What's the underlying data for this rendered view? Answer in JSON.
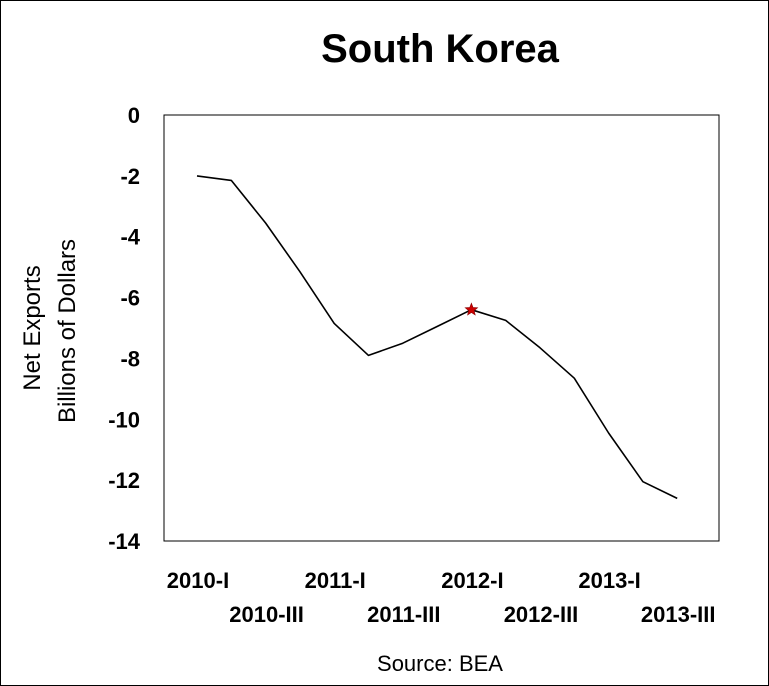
{
  "chart_data": {
    "type": "line",
    "title": "South Korea",
    "ylabel_lines": [
      "Net Exports",
      "Billions of Dollars"
    ],
    "source": "Source: BEA",
    "ylim": [
      -14,
      0
    ],
    "yticks": [
      0,
      -2,
      -4,
      -6,
      -8,
      -10,
      -12,
      -14
    ],
    "ytick_labels": [
      "0",
      "-2",
      "-4",
      "-6",
      "-8",
      "-10",
      "-12",
      "-14"
    ],
    "categories": [
      "2010-I",
      "2010-II",
      "2010-III",
      "2010-IV",
      "2011-I",
      "2011-II",
      "2011-III",
      "2011-IV",
      "2012-I",
      "2012-II",
      "2012-III",
      "2012-IV",
      "2013-I",
      "2013-II",
      "2013-III"
    ],
    "xtick_labels": [
      {
        "category": "2010-I",
        "label": "2010-I",
        "row": 1
      },
      {
        "category": "2010-III",
        "label": "2010-III",
        "row": 2
      },
      {
        "category": "2011-I",
        "label": "2011-I",
        "row": 1
      },
      {
        "category": "2011-III",
        "label": "2011-III",
        "row": 2
      },
      {
        "category": "2012-I",
        "label": "2012-I",
        "row": 1
      },
      {
        "category": "2012-III",
        "label": "2012-III",
        "row": 2
      },
      {
        "category": "2013-I",
        "label": "2013-I",
        "row": 1
      },
      {
        "category": "2013-III",
        "label": "2013-III",
        "row": 2
      }
    ],
    "series": [
      {
        "values": [
          -2.0,
          -2.15,
          -3.55,
          -5.15,
          -6.85,
          -7.9,
          -7.5,
          -6.95,
          -6.4,
          -6.75,
          -7.65,
          -8.65,
          -10.45,
          -12.05,
          -12.6
        ],
        "color": "#000000"
      }
    ],
    "highlight": {
      "category": "2012-I",
      "value": -6.4,
      "color": "#cc0000",
      "marker": "star"
    },
    "grid": false,
    "legend": "none"
  }
}
